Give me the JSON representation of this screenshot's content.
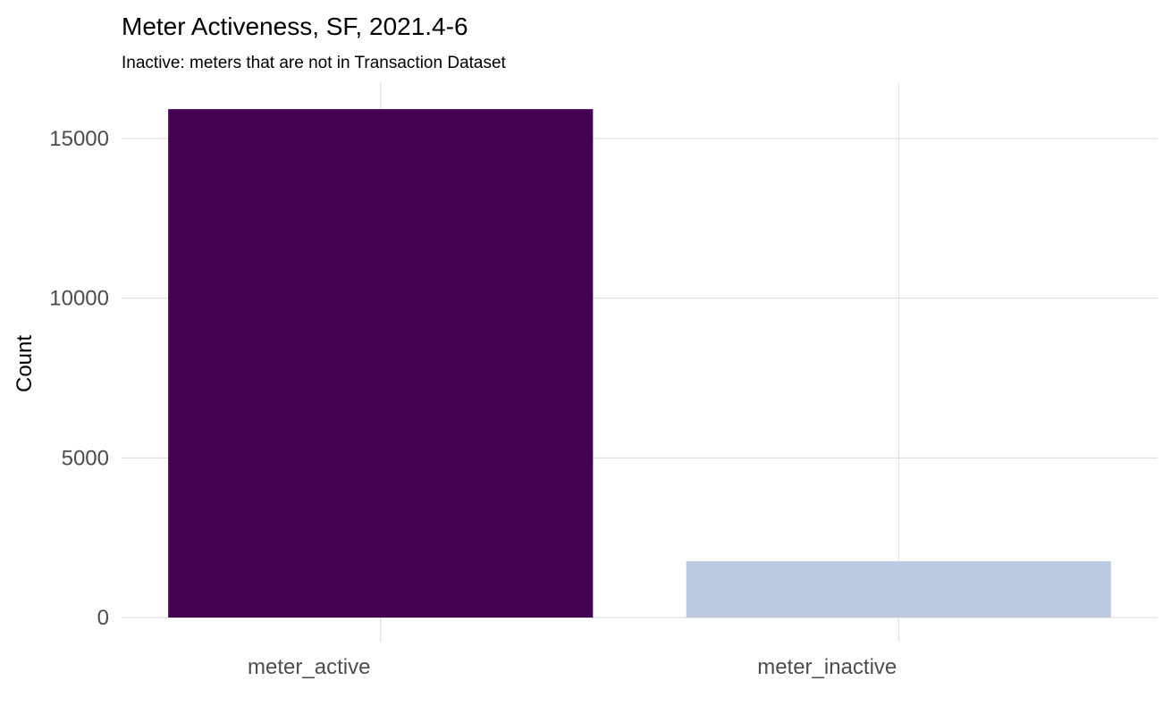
{
  "chart_data": {
    "type": "bar",
    "title": "Meter Activeness, SF, 2021.4-6",
    "subtitle": "Inactive: meters that are not in Transaction Dataset",
    "xlabel": "",
    "ylabel": "Count",
    "categories": [
      "meter_active",
      "meter_inactive"
    ],
    "values": [
      15920,
      1760
    ],
    "colors": [
      "#440154",
      "#bec9e2"
    ],
    "yticks": [
      0,
      5000,
      10000,
      15000
    ],
    "ytick_labels": [
      "0",
      "5000",
      "10000",
      "15000"
    ],
    "ylim": [
      0,
      16700
    ],
    "grid": true,
    "legend": "none"
  }
}
